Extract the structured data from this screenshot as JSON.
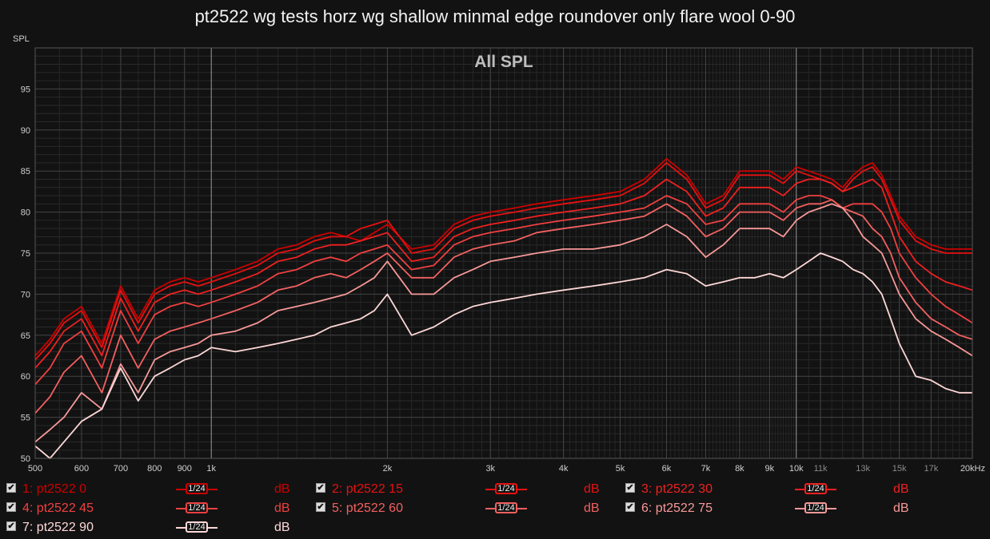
{
  "title": "pt2522 wg tests horz wg shallow minmal edge roundover only flare wool 0-90",
  "chart_data": {
    "type": "line",
    "title": "pt2522 wg tests horz wg shallow minmal edge roundover only flare wool 0-90",
    "inner_title": "All SPL",
    "ylabel": "SPL",
    "xlabel": "",
    "xscale": "log",
    "xlim": [
      500,
      20000
    ],
    "ylim": [
      50,
      100
    ],
    "yticks": [
      50,
      55,
      60,
      65,
      70,
      75,
      80,
      85,
      90,
      95
    ],
    "xticks": [
      {
        "v": 500,
        "label": "500",
        "gray": false
      },
      {
        "v": 600,
        "label": "600",
        "gray": false
      },
      {
        "v": 700,
        "label": "700",
        "gray": false
      },
      {
        "v": 800,
        "label": "800",
        "gray": false
      },
      {
        "v": 900,
        "label": "900",
        "gray": false
      },
      {
        "v": 1000,
        "label": "1k",
        "gray": false
      },
      {
        "v": 2000,
        "label": "2k",
        "gray": false
      },
      {
        "v": 3000,
        "label": "3k",
        "gray": false
      },
      {
        "v": 4000,
        "label": "4k",
        "gray": false
      },
      {
        "v": 5000,
        "label": "5k",
        "gray": false
      },
      {
        "v": 6000,
        "label": "6k",
        "gray": false
      },
      {
        "v": 7000,
        "label": "7k",
        "gray": false
      },
      {
        "v": 8000,
        "label": "8k",
        "gray": false
      },
      {
        "v": 9000,
        "label": "9k",
        "gray": false
      },
      {
        "v": 10000,
        "label": "10k",
        "gray": false
      },
      {
        "v": 11000,
        "label": "11k",
        "gray": true
      },
      {
        "v": 13000,
        "label": "13k",
        "gray": true
      },
      {
        "v": 15000,
        "label": "15k",
        "gray": true
      },
      {
        "v": 17000,
        "label": "17k",
        "gray": true
      },
      {
        "v": 20000,
        "label": "20kHz",
        "gray": false
      }
    ],
    "grid": true,
    "x": [
      500,
      530,
      560,
      600,
      650,
      700,
      750,
      800,
      850,
      900,
      950,
      1000,
      1100,
      1200,
      1300,
      1400,
      1500,
      1600,
      1700,
      1800,
      1900,
      2000,
      2200,
      2400,
      2600,
      2800,
      3000,
      3300,
      3600,
      4000,
      4500,
      5000,
      5500,
      6000,
      6500,
      7000,
      7500,
      8000,
      8500,
      9000,
      9500,
      10000,
      10500,
      11000,
      11500,
      12000,
      12500,
      13000,
      13500,
      14000,
      14500,
      15000,
      16000,
      17000,
      18000,
      19000,
      20000
    ],
    "series": [
      {
        "name": "1: pt2522 0",
        "color": "#cc0000",
        "values": [
          62.5,
          64.5,
          67,
          68.5,
          64,
          71,
          67,
          70.5,
          71.5,
          72,
          71.5,
          72,
          73,
          74,
          75.5,
          76,
          77,
          77.5,
          77,
          76.5,
          77.5,
          78.5,
          75.5,
          76,
          78.5,
          79.5,
          80,
          80.5,
          81,
          81.5,
          82,
          82.5,
          84,
          86.5,
          84.5,
          81,
          82,
          85,
          85,
          85,
          84,
          85.5,
          85,
          84.5,
          84,
          83,
          84.5,
          85.5,
          86,
          84.5,
          82,
          79.5,
          77,
          76,
          75.5,
          75.5,
          75.5
        ]
      },
      {
        "name": "2: pt2522 15",
        "color": "#e81010",
        "values": [
          62,
          64,
          66.5,
          68,
          63.5,
          70.5,
          66.5,
          70,
          71,
          71.5,
          71,
          71.5,
          72.5,
          73.5,
          75,
          75.5,
          76.5,
          77,
          77,
          78,
          78.5,
          79,
          75,
          75.5,
          78,
          79,
          79.5,
          80,
          80.5,
          81,
          81.5,
          82,
          83.5,
          86,
          84,
          80.5,
          81.5,
          84.5,
          84.5,
          84.5,
          83.5,
          85,
          84.5,
          84,
          83.5,
          82.5,
          84,
          85,
          85.5,
          84,
          81.5,
          79,
          76.5,
          75.5,
          75,
          75,
          75
        ]
      },
      {
        "name": "3: pt2522 30",
        "color": "#f02020",
        "values": [
          61,
          63,
          65.5,
          67,
          62.5,
          69.5,
          65.5,
          69,
          70,
          70.5,
          70,
          70.5,
          71.5,
          72.5,
          74,
          74.5,
          75.5,
          76,
          76,
          76.5,
          77,
          77.5,
          74,
          74.5,
          77,
          78,
          78.5,
          79,
          79.5,
          80,
          80.5,
          81,
          82,
          84,
          82.5,
          79.5,
          80.5,
          83,
          83,
          83,
          82,
          83.5,
          84,
          84,
          83.5,
          82.5,
          83,
          83.5,
          84,
          83,
          80,
          77,
          74,
          72.5,
          71.5,
          71,
          70.5
        ]
      },
      {
        "name": "4: pt2522 45",
        "color": "#f04040",
        "values": [
          59,
          61,
          64,
          65.5,
          61,
          68,
          64,
          67.5,
          68.5,
          69,
          68.5,
          69,
          70,
          71,
          72.5,
          73,
          74,
          74.5,
          74,
          75,
          75.5,
          76,
          73,
          73.5,
          76,
          77,
          77.5,
          78,
          78.5,
          79,
          79.5,
          80,
          80.5,
          82,
          81,
          78.5,
          79,
          81,
          81,
          81,
          80,
          81.5,
          82,
          82,
          81.5,
          80.5,
          81,
          81,
          81,
          80,
          78,
          75,
          72,
          70,
          68.5,
          67.5,
          66.5
        ]
      },
      {
        "name": "5: pt2522 60",
        "color": "#f46060",
        "values": [
          55.5,
          57.5,
          60.5,
          62.5,
          58,
          65,
          61,
          64.5,
          65.5,
          66,
          66.5,
          67,
          68,
          69,
          70.5,
          71,
          72,
          72.5,
          72,
          73,
          74,
          75,
          72,
          72,
          74.5,
          75.5,
          76,
          76.5,
          77.5,
          78,
          78.5,
          79,
          79.5,
          81,
          79.5,
          77,
          78,
          80,
          80,
          80,
          79,
          80.5,
          81,
          81,
          81.5,
          80.5,
          80,
          79.5,
          78,
          77,
          75,
          72,
          69,
          67,
          66,
          65,
          64.5
        ]
      },
      {
        "name": "6: pt2522 75",
        "color": "#f89898",
        "values": [
          52,
          53.5,
          55,
          58,
          56,
          61.5,
          58,
          62,
          63,
          63.5,
          64,
          65,
          65.5,
          66.5,
          68,
          68.5,
          69,
          69.5,
          70,
          71,
          72,
          74,
          70,
          70,
          72,
          73,
          74,
          74.5,
          75,
          75.5,
          75.5,
          76,
          77,
          78.5,
          77,
          74.5,
          76,
          78,
          78,
          78,
          77,
          79,
          80,
          80.5,
          81,
          80.5,
          79,
          77,
          76,
          75,
          72.5,
          70,
          67,
          65.5,
          64.5,
          63.5,
          62.5
        ]
      },
      {
        "name": "7: pt2522 90",
        "color": "#ffd8d8",
        "values": [
          51.5,
          50,
          52,
          54.5,
          56,
          61,
          57,
          60,
          61,
          62,
          62.5,
          63.5,
          63,
          63.5,
          64,
          64.5,
          65,
          66,
          66.5,
          67,
          68,
          70,
          65,
          66,
          67.5,
          68.5,
          69,
          69.5,
          70,
          70.5,
          71,
          71.5,
          72,
          73,
          72.5,
          71,
          71.5,
          72,
          72,
          72.5,
          72,
          73,
          74,
          75,
          74.5,
          74,
          73,
          72.5,
          71.5,
          70,
          67,
          64,
          60,
          59.5,
          58.5,
          58,
          58
        ]
      }
    ]
  },
  "legend": [
    {
      "label": "1: pt2522 0",
      "color": "#cc0000",
      "smoothing": "1/24",
      "unit": "dB",
      "checked": true
    },
    {
      "label": "2: pt2522 15",
      "color": "#e81010",
      "smoothing": "1/24",
      "unit": "dB",
      "checked": true
    },
    {
      "label": "3: pt2522 30",
      "color": "#f02020",
      "smoothing": "1/24",
      "unit": "dB",
      "checked": true
    },
    {
      "label": "4: pt2522 45",
      "color": "#f04040",
      "smoothing": "1/24",
      "unit": "dB",
      "checked": true
    },
    {
      "label": "5: pt2522 60",
      "color": "#f46060",
      "smoothing": "1/24",
      "unit": "dB",
      "checked": true
    },
    {
      "label": "6: pt2522 75",
      "color": "#f89898",
      "smoothing": "1/24",
      "unit": "dB",
      "checked": true
    },
    {
      "label": "7: pt2522 90",
      "color": "#ffd8d8",
      "smoothing": "1/24",
      "unit": "dB",
      "checked": true
    }
  ]
}
